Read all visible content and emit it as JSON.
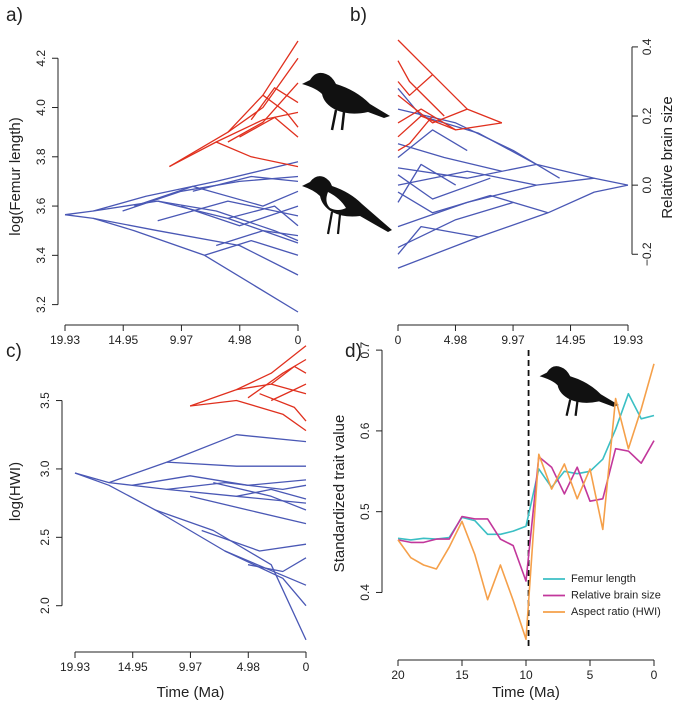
{
  "chart_data": [
    {
      "type": "tree",
      "panel_label": "a)",
      "ylabel": "log(Femur length)",
      "xlim": [
        19.93,
        0
      ],
      "xticks": [
        19.93,
        14.95,
        9.97,
        4.98,
        0
      ],
      "ylim": [
        3.17,
        4.27
      ],
      "yticks": [
        3.2,
        3.4,
        3.6,
        3.8,
        {
          "value": 4,
          "label": "4.0"
        },
        4.2
      ],
      "series": [
        {
          "color": "#4a58b5",
          "x": [
            19.93,
            17.5,
            12,
            6,
            0
          ],
          "values": [
            3.565,
            3.58,
            3.62,
            3.55,
            3.45
          ]
        },
        {
          "color": "#4a58b5",
          "x": [
            19.93,
            17.5,
            14,
            8,
            0
          ],
          "values": [
            3.565,
            3.55,
            3.5,
            3.4,
            3.17
          ]
        },
        {
          "color": "#4a58b5",
          "x": [
            17.5,
            13,
            7,
            0
          ],
          "values": [
            3.58,
            3.64,
            3.7,
            3.78
          ]
        },
        {
          "color": "#4a58b5",
          "x": [
            17.5,
            12,
            5,
            0
          ],
          "values": [
            3.55,
            3.5,
            3.44,
            3.32
          ]
        },
        {
          "color": "#4a58b5",
          "x": [
            14,
            9,
            3,
            0
          ],
          "values": [
            3.6,
            3.68,
            3.6,
            3.66
          ]
        },
        {
          "color": "#4a58b5",
          "x": [
            12,
            7,
            2,
            0
          ],
          "values": [
            3.62,
            3.58,
            3.5,
            3.46
          ]
        },
        {
          "color": "#4a58b5",
          "x": [
            12,
            6,
            0
          ],
          "values": [
            3.54,
            3.62,
            3.56
          ]
        },
        {
          "color": "#4a58b5",
          "x": [
            10,
            5,
            0
          ],
          "values": [
            3.6,
            3.52,
            3.6
          ]
        },
        {
          "color": "#4a58b5",
          "x": [
            8,
            4,
            0
          ],
          "values": [
            3.4,
            3.46,
            3.4
          ]
        },
        {
          "color": "#4a58b5",
          "x": [
            9,
            4,
            0
          ],
          "values": [
            3.66,
            3.72,
            3.7
          ]
        },
        {
          "color": "#4a58b5",
          "x": [
            6,
            2,
            0
          ],
          "values": [
            3.55,
            3.6,
            3.52
          ]
        },
        {
          "color": "#4a58b5",
          "x": [
            15,
            10,
            5,
            0
          ],
          "values": [
            3.58,
            3.66,
            3.7,
            3.72
          ]
        },
        {
          "color": "#4a58b5",
          "x": [
            7,
            3,
            0
          ],
          "values": [
            3.44,
            3.5,
            3.48
          ]
        },
        {
          "color": "#e0301e",
          "x": [
            11,
            6,
            3,
            0
          ],
          "values": [
            3.76,
            3.9,
            4.05,
            4.27
          ]
        },
        {
          "color": "#e0301e",
          "x": [
            11,
            7,
            3,
            0
          ],
          "values": [
            3.76,
            3.86,
            3.95,
            3.98
          ]
        },
        {
          "color": "#e0301e",
          "x": [
            7,
            4,
            0
          ],
          "values": [
            3.86,
            3.8,
            3.76
          ]
        },
        {
          "color": "#e0301e",
          "x": [
            6,
            3,
            0
          ],
          "values": [
            3.9,
            4.0,
            4.2
          ]
        },
        {
          "color": "#e0301e",
          "x": [
            5,
            2,
            0
          ],
          "values": [
            3.88,
            3.96,
            3.88
          ]
        },
        {
          "color": "#e0301e",
          "x": [
            4,
            2,
            0
          ],
          "values": [
            3.95,
            4.08,
            4.02
          ]
        },
        {
          "color": "#e0301e",
          "x": [
            3,
            1,
            0
          ],
          "values": [
            4.05,
            3.98,
            3.92
          ]
        },
        {
          "color": "#e0301e",
          "x": [
            6,
            3,
            0
          ],
          "values": [
            3.86,
            3.94,
            4.1
          ]
        }
      ]
    },
    {
      "type": "tree",
      "panel_label": "b)",
      "ylabel": "Relative brain size",
      "yaxis_side": "right",
      "xlim": [
        0,
        19.93
      ],
      "xticks": [
        0,
        4.98,
        9.97,
        14.95,
        19.93
      ],
      "ylim": [
        -0.26,
        0.42
      ],
      "yticks": [
        {
          "value": -0.2,
          "label": "−0.2"
        },
        {
          "value": 0,
          "label": "0.0"
        },
        0.2,
        0.4
      ],
      "series": [
        {
          "color": "#4a58b5",
          "x": [
            19.93,
            17,
            12,
            6,
            0
          ],
          "values": [
            0,
            0.02,
            0,
            -0.05,
            -0.12
          ]
        },
        {
          "color": "#4a58b5",
          "x": [
            19.93,
            17,
            13,
            7,
            0
          ],
          "values": [
            0,
            -0.02,
            -0.08,
            -0.15,
            -0.24
          ]
        },
        {
          "color": "#4a58b5",
          "x": [
            17,
            12,
            6,
            0
          ],
          "values": [
            0.02,
            0.06,
            0.02,
            0.05
          ]
        },
        {
          "color": "#4a58b5",
          "x": [
            13,
            8,
            3,
            0
          ],
          "values": [
            -0.08,
            -0.03,
            -0.08,
            -0.02
          ]
        },
        {
          "color": "#4a58b5",
          "x": [
            12,
            7,
            2,
            0
          ],
          "values": [
            0.06,
            0.15,
            0.2,
            0.28
          ]
        },
        {
          "color": "#4a58b5",
          "x": [
            12,
            6,
            0
          ],
          "values": [
            0,
            0.04,
            0
          ]
        },
        {
          "color": "#4a58b5",
          "x": [
            10,
            5,
            0
          ],
          "values": [
            -0.05,
            -0.1,
            -0.18
          ]
        },
        {
          "color": "#4a58b5",
          "x": [
            9,
            4,
            0
          ],
          "values": [
            0.04,
            0.08,
            0.12
          ]
        },
        {
          "color": "#4a58b5",
          "x": [
            8,
            3,
            0
          ],
          "values": [
            0.02,
            -0.04,
            0.03
          ]
        },
        {
          "color": "#4a58b5",
          "x": [
            7,
            2,
            0
          ],
          "values": [
            -0.15,
            -0.12,
            -0.2
          ]
        },
        {
          "color": "#4a58b5",
          "x": [
            6,
            3,
            0
          ],
          "values": [
            0.1,
            0.16,
            0.08
          ]
        },
        {
          "color": "#4a58b5",
          "x": [
            5,
            2,
            0
          ],
          "values": [
            0,
            0.06,
            -0.05
          ]
        },
        {
          "color": "#4a58b5",
          "x": [
            14,
            10,
            5,
            0
          ],
          "values": [
            0.02,
            0.1,
            0.18,
            0.22
          ]
        },
        {
          "color": "#e0301e",
          "x": [
            9,
            6,
            3,
            0
          ],
          "values": [
            0.18,
            0.22,
            0.32,
            0.42
          ]
        },
        {
          "color": "#e0301e",
          "x": [
            9,
            5,
            2,
            0
          ],
          "values": [
            0.18,
            0.16,
            0.2,
            0.14
          ]
        },
        {
          "color": "#e0301e",
          "x": [
            6,
            3,
            0
          ],
          "values": [
            0.22,
            0.18,
            0.26
          ]
        },
        {
          "color": "#e0301e",
          "x": [
            5,
            2,
            0
          ],
          "values": [
            0.16,
            0.22,
            0.18
          ]
        },
        {
          "color": "#e0301e",
          "x": [
            4,
            1,
            0
          ],
          "values": [
            0.2,
            0.3,
            0.36
          ]
        },
        {
          "color": "#e0301e",
          "x": [
            3,
            1,
            0
          ],
          "values": [
            0.2,
            0.12,
            0.1
          ]
        },
        {
          "color": "#e0301e",
          "x": [
            3,
            1,
            0
          ],
          "values": [
            0.32,
            0.26,
            0.3
          ]
        }
      ]
    },
    {
      "type": "tree",
      "panel_label": "c)",
      "ylabel": "log(HWI)",
      "xlabel": "Time (Ma)",
      "xlim": [
        19.93,
        0
      ],
      "xticks": [
        19.93,
        14.95,
        9.97,
        4.98,
        0
      ],
      "ylim": [
        1.72,
        3.95
      ],
      "yticks": [
        {
          "value": 2,
          "label": "2.0"
        },
        2.5,
        {
          "value": 3,
          "label": "3.0"
        },
        3.5
      ],
      "series": [
        {
          "color": "#4a58b5",
          "x": [
            19.93,
            17,
            12,
            6,
            0
          ],
          "values": [
            2.97,
            2.9,
            2.85,
            2.8,
            2.75
          ]
        },
        {
          "color": "#4a58b5",
          "x": [
            19.93,
            17,
            13,
            7,
            0
          ],
          "values": [
            2.97,
            2.88,
            2.7,
            2.4,
            2.15
          ]
        },
        {
          "color": "#4a58b5",
          "x": [
            17,
            12,
            6,
            0
          ],
          "values": [
            2.9,
            3.05,
            3.02,
            3.02
          ]
        },
        {
          "color": "#4a58b5",
          "x": [
            13,
            8,
            3,
            0
          ],
          "values": [
            2.7,
            2.55,
            2.3,
            1.75
          ]
        },
        {
          "color": "#4a58b5",
          "x": [
            12,
            7,
            2,
            0
          ],
          "values": [
            2.85,
            2.9,
            2.85,
            2.88
          ]
        },
        {
          "color": "#4a58b5",
          "x": [
            12,
            6,
            0
          ],
          "values": [
            3.05,
            3.25,
            3.2
          ]
        },
        {
          "color": "#4a58b5",
          "x": [
            10,
            5,
            0
          ],
          "values": [
            2.8,
            2.7,
            2.6
          ]
        },
        {
          "color": "#4a58b5",
          "x": [
            9,
            4,
            0
          ],
          "values": [
            2.55,
            2.4,
            2.45
          ]
        },
        {
          "color": "#4a58b5",
          "x": [
            8,
            3,
            0
          ],
          "values": [
            2.9,
            2.8,
            2.7
          ]
        },
        {
          "color": "#4a58b5",
          "x": [
            7,
            2,
            0
          ],
          "values": [
            2.4,
            2.2,
            2.0
          ]
        },
        {
          "color": "#4a58b5",
          "x": [
            6,
            3,
            0
          ],
          "values": [
            2.8,
            2.85,
            2.78
          ]
        },
        {
          "color": "#4a58b5",
          "x": [
            5,
            2,
            0
          ],
          "values": [
            2.3,
            2.25,
            2.35
          ]
        },
        {
          "color": "#4a58b5",
          "x": [
            15,
            10,
            5,
            0
          ],
          "values": [
            2.88,
            2.95,
            2.88,
            2.92
          ]
        },
        {
          "color": "#e0301e",
          "x": [
            10,
            6,
            3,
            0
          ],
          "values": [
            3.46,
            3.58,
            3.7,
            3.9
          ]
        },
        {
          "color": "#e0301e",
          "x": [
            10,
            6,
            2,
            0
          ],
          "values": [
            3.46,
            3.5,
            3.4,
            3.28
          ]
        },
        {
          "color": "#e0301e",
          "x": [
            6,
            3,
            0
          ],
          "values": [
            3.58,
            3.62,
            3.55
          ]
        },
        {
          "color": "#e0301e",
          "x": [
            5,
            2,
            0
          ],
          "values": [
            3.52,
            3.7,
            3.8
          ]
        },
        {
          "color": "#e0301e",
          "x": [
            4,
            1,
            0
          ],
          "values": [
            3.55,
            3.45,
            3.35
          ]
        },
        {
          "color": "#e0301e",
          "x": [
            3,
            1,
            0
          ],
          "values": [
            3.62,
            3.75,
            3.7
          ]
        },
        {
          "color": "#e0301e",
          "x": [
            3,
            1,
            0
          ],
          "values": [
            3.5,
            3.58,
            3.62
          ]
        }
      ]
    },
    {
      "type": "line",
      "panel_label": "d)",
      "ylabel": "Standardized trait value",
      "xlabel": "Time (Ma)",
      "xlim": [
        20,
        0
      ],
      "xticks": [
        20,
        15,
        10,
        5,
        0
      ],
      "ylim": [
        0.33,
        0.715
      ],
      "yticks": [
        0.4,
        0.5,
        0.6,
        0.7
      ],
      "vline": 9.8,
      "legend": "lower right",
      "x": [
        20,
        19,
        18,
        17,
        16,
        15,
        14,
        13,
        12,
        11,
        10,
        9,
        8,
        7,
        6,
        5,
        4,
        3,
        2,
        1,
        0
      ],
      "series": [
        {
          "name": "Femur length",
          "color": "#3bbfc4",
          "values": [
            0.467,
            0.465,
            0.467,
            0.466,
            0.468,
            0.493,
            0.489,
            0.472,
            0.472,
            0.476,
            0.482,
            0.553,
            0.53,
            0.55,
            0.547,
            0.55,
            0.565,
            0.602,
            0.646,
            0.615,
            0.619
          ]
        },
        {
          "name": "Relative brain size",
          "color": "#c2379b",
          "values": [
            0.465,
            0.462,
            0.462,
            0.466,
            0.466,
            0.494,
            0.491,
            0.491,
            0.466,
            0.458,
            0.414,
            0.568,
            0.555,
            0.522,
            0.555,
            0.513,
            0.516,
            0.578,
            0.575,
            0.56,
            0.588
          ]
        },
        {
          "name": "Aspect ratio (HWI)",
          "color": "#f5a04a",
          "values": [
            0.465,
            0.443,
            0.434,
            0.429,
            0.456,
            0.488,
            0.447,
            0.391,
            0.434,
            0.39,
            0.342,
            0.571,
            0.528,
            0.559,
            0.516,
            0.553,
            0.478,
            0.64,
            0.578,
            0.627,
            0.683
          ]
        }
      ]
    }
  ]
}
